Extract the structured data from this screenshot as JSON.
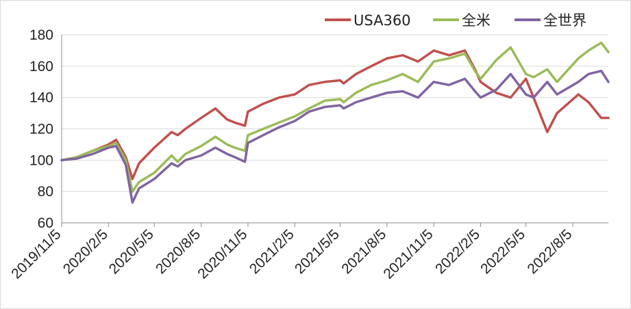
{
  "chart_data": {
    "type": "line",
    "title": "",
    "xlabel": "",
    "ylabel": "",
    "ylim": [
      60,
      180
    ],
    "yticks": [
      60,
      80,
      100,
      120,
      140,
      160,
      180
    ],
    "xticks": [
      "2019/11/5",
      "2020/2/5",
      "2020/5/5",
      "2020/8/5",
      "2020/11/5",
      "2021/2/5",
      "2021/5/5",
      "2021/8/5",
      "2021/11/5",
      "2022/2/5",
      "2022/5/5",
      "2022/8/5"
    ],
    "x_range": [
      "2019/11/5",
      "2022/10/14"
    ],
    "grid": "horizontal",
    "legend_position": "top-right",
    "x": [
      "2019/11/5",
      "2019/12/5",
      "2020/1/5",
      "2020/2/5",
      "2020/2/20",
      "2020/3/10",
      "2020/3/23",
      "2020/4/5",
      "2020/5/5",
      "2020/6/8",
      "2020/6/20",
      "2020/7/5",
      "2020/8/5",
      "2020/9/2",
      "2020/9/25",
      "2020/10/10",
      "2020/10/30",
      "2020/11/5",
      "2020/12/5",
      "2021/1/5",
      "2021/2/5",
      "2021/3/5",
      "2021/4/5",
      "2021/5/5",
      "2021/5/12",
      "2021/6/5",
      "2021/7/5",
      "2021/8/5",
      "2021/9/5",
      "2021/10/5",
      "2021/11/5",
      "2021/12/5",
      "2022/1/5",
      "2022/1/25",
      "2022/2/5",
      "2022/3/8",
      "2022/4/5",
      "2022/5/5",
      "2022/5/20",
      "2022/6/16",
      "2022/7/5",
      "2022/8/16",
      "2022/9/5",
      "2022/9/30",
      "2022/10/14"
    ],
    "series": [
      {
        "name": "USA360",
        "color": "#c0504d",
        "values": [
          100,
          102,
          106,
          110,
          113,
          102,
          88,
          98,
          108,
          118,
          116,
          120,
          127,
          133,
          126,
          124,
          122,
          131,
          136,
          140,
          142,
          148,
          150,
          151,
          149,
          155,
          160,
          165,
          167,
          163,
          170,
          167,
          170,
          158,
          150,
          143,
          140,
          152,
          140,
          118,
          130,
          142,
          137,
          127,
          127
        ]
      },
      {
        "name": "全米",
        "color": "#9bbb59",
        "values": [
          100,
          102,
          106,
          109,
          111,
          100,
          80,
          86,
          92,
          103,
          99,
          104,
          109,
          115,
          110,
          108,
          106,
          116,
          120,
          124,
          128,
          133,
          138,
          139,
          137,
          143,
          148,
          151,
          155,
          150,
          163,
          165,
          168,
          157,
          152,
          164,
          172,
          155,
          153,
          158,
          150,
          165,
          170,
          175,
          169
        ]
      },
      {
        "name": "全世界",
        "color": "#8064a2",
        "values": [
          100,
          101,
          104,
          108,
          109,
          97,
          73,
          82,
          88,
          98,
          96,
          100,
          103,
          108,
          104,
          102,
          99,
          111,
          116,
          121,
          125,
          131,
          134,
          135,
          133,
          137,
          140,
          143,
          144,
          140,
          150,
          148,
          152,
          144,
          140,
          145,
          155,
          142,
          140,
          150,
          142,
          150,
          155,
          157,
          150
        ]
      }
    ]
  }
}
